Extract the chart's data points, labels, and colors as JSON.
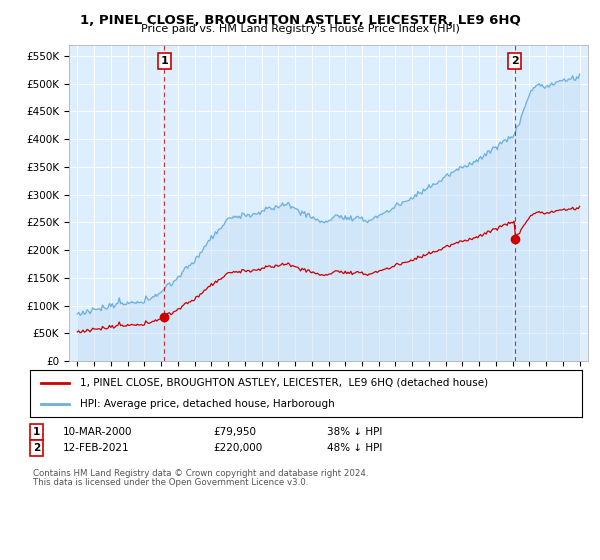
{
  "title_line1": "1, PINEL CLOSE, BROUGHTON ASTLEY, LEICESTER, LE9 6HQ",
  "title_line2": "Price paid vs. HM Land Registry's House Price Index (HPI)",
  "background_color": "#ffffff",
  "plot_bg_color": "#ddeeff",
  "grid_color": "#ffffff",
  "hpi_color": "#6ab0e0",
  "price_color": "#cc0000",
  "dashed_color": "#cc0000",
  "ylim": [
    0,
    570000
  ],
  "yticks": [
    0,
    50000,
    100000,
    150000,
    200000,
    250000,
    300000,
    350000,
    400000,
    450000,
    500000,
    550000
  ],
  "ytick_labels": [
    "£0",
    "£50K",
    "£100K",
    "£150K",
    "£200K",
    "£250K",
    "£300K",
    "£350K",
    "£400K",
    "£450K",
    "£500K",
    "£550K"
  ],
  "sale1_year": 2000.19,
  "sale1_price": 79950,
  "sale2_year": 2021.12,
  "sale2_price": 220000,
  "legend_line1": "1, PINEL CLOSE, BROUGHTON ASTLEY, LEICESTER,  LE9 6HQ (detached house)",
  "legend_line2": "HPI: Average price, detached house, Harborough",
  "footnote1": "Contains HM Land Registry data © Crown copyright and database right 2024.",
  "footnote2": "This data is licensed under the Open Government Licence v3.0."
}
